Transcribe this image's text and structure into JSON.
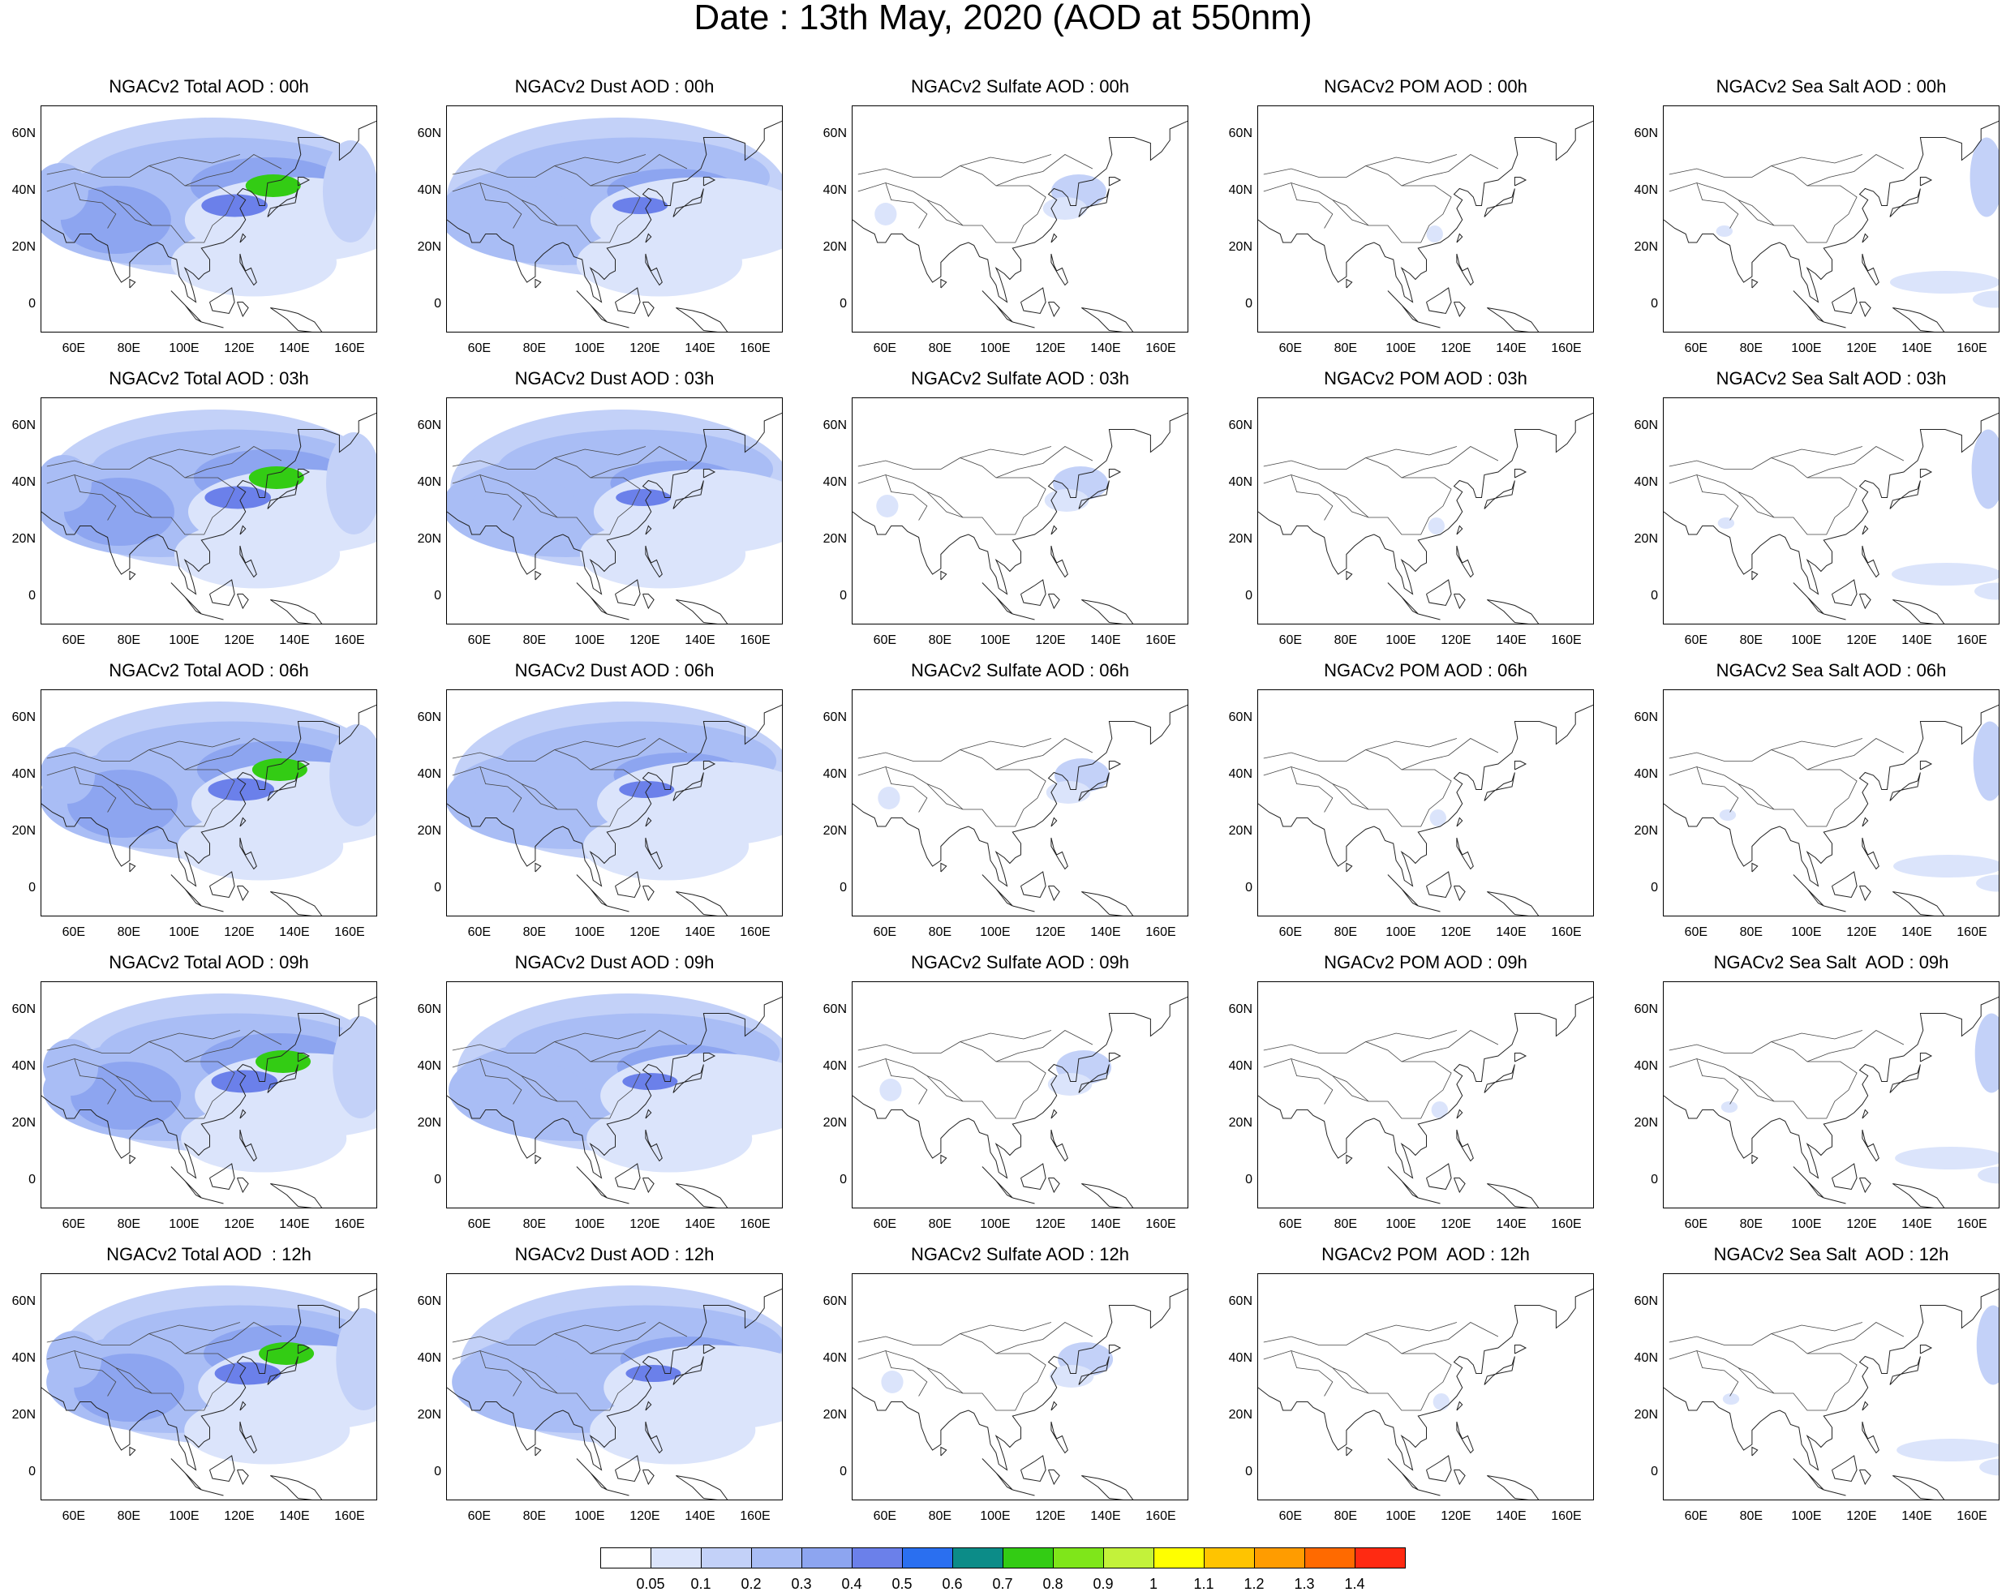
{
  "title": "Date : 13th May, 2020 (AOD at 550nm)",
  "lat_ticks": [
    "60N",
    "40N",
    "20N",
    "0"
  ],
  "lon_ticks": [
    "60E",
    "80E",
    "100E",
    "120E",
    "140E",
    "160E"
  ],
  "panel_titles": [
    [
      "NGACv2 Total AOD : 00h",
      "NGACv2 Dust AOD : 00h",
      "NGACv2 Sulfate AOD : 00h",
      "NGACv2 POM AOD : 00h",
      "NGACv2 Sea Salt AOD : 00h"
    ],
    [
      "NGACv2 Total AOD : 03h",
      "NGACv2 Dust AOD : 03h",
      "NGACv2 Sulfate AOD : 03h",
      "NGACv2 POM AOD : 03h",
      "NGACv2 Sea Salt AOD : 03h"
    ],
    [
      "NGACv2 Total AOD : 06h",
      "NGACv2 Dust AOD : 06h",
      "NGACv2 Sulfate AOD : 06h",
      "NGACv2 POM AOD : 06h",
      "NGACv2 Sea Salt AOD : 06h"
    ],
    [
      "NGACv2 Total AOD : 09h",
      "NGACv2 Dust AOD : 09h",
      "NGACv2 Sulfate AOD : 09h",
      "NGACv2 POM AOD : 09h",
      "NGACv2 Sea Salt  AOD : 09h"
    ],
    [
      "NGACv2 Total AOD  : 12h",
      "NGACv2 Dust AOD : 12h",
      "NGACv2 Sulfate AOD : 12h",
      "NGACv2 POM  AOD : 12h",
      "NGACv2 Sea Salt  AOD : 12h"
    ]
  ],
  "colorbar": {
    "labels": [
      "0.05",
      "0.1",
      "0.2",
      "0.3",
      "0.4",
      "0.5",
      "0.6",
      "0.7",
      "0.8",
      "0.9",
      "1",
      "1.1",
      "1.2",
      "1.3",
      "1.4"
    ],
    "colors": [
      "#ffffff",
      "#dbe4fb",
      "#c3d1f8",
      "#a9bdf5",
      "#8da5f0",
      "#6b80ea",
      "#2a6ff0",
      "#0c8c88",
      "#33cc14",
      "#7fe61a",
      "#c3f23a",
      "#ffff00",
      "#ffc400",
      "#ff9c00",
      "#ff6a00",
      "#ff2a12"
    ]
  }
}
